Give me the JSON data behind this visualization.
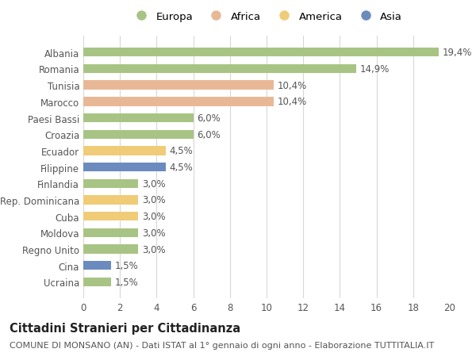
{
  "categories": [
    "Albania",
    "Romania",
    "Tunisia",
    "Marocco",
    "Paesi Bassi",
    "Croazia",
    "Ecuador",
    "Filippine",
    "Finlandia",
    "Rep. Dominicana",
    "Cuba",
    "Moldova",
    "Regno Unito",
    "Cina",
    "Ucraina"
  ],
  "values": [
    19.4,
    14.9,
    10.4,
    10.4,
    6.0,
    6.0,
    4.5,
    4.5,
    3.0,
    3.0,
    3.0,
    3.0,
    3.0,
    1.5,
    1.5
  ],
  "labels": [
    "19,4%",
    "14,9%",
    "10,4%",
    "10,4%",
    "6,0%",
    "6,0%",
    "4,5%",
    "4,5%",
    "3,0%",
    "3,0%",
    "3,0%",
    "3,0%",
    "3,0%",
    "1,5%",
    "1,5%"
  ],
  "continents": [
    "Europa",
    "Europa",
    "Africa",
    "Africa",
    "Europa",
    "Europa",
    "America",
    "Asia",
    "Europa",
    "America",
    "America",
    "Europa",
    "Europa",
    "Asia",
    "Europa"
  ],
  "continent_colors": {
    "Europa": "#a8c484",
    "Africa": "#e8b896",
    "America": "#f0cc78",
    "Asia": "#6b8bbf"
  },
  "legend_order": [
    "Europa",
    "Africa",
    "America",
    "Asia"
  ],
  "title": "Cittadini Stranieri per Cittadinanza",
  "subtitle": "COMUNE DI MONSANO (AN) - Dati ISTAT al 1° gennaio di ogni anno - Elaborazione TUTTITALIA.IT",
  "xlim": [
    0,
    20
  ],
  "xticks": [
    0,
    2,
    4,
    6,
    8,
    10,
    12,
    14,
    16,
    18,
    20
  ],
  "bg_color": "#ffffff",
  "grid_color": "#d8d8d8",
  "bar_height": 0.55,
  "label_fontsize": 8.5,
  "ytick_fontsize": 8.5,
  "xtick_fontsize": 8.5,
  "title_fontsize": 10.5,
  "subtitle_fontsize": 8,
  "legend_fontsize": 9.5
}
